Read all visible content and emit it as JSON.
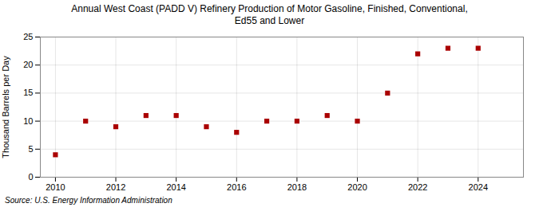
{
  "chart_data": {
    "type": "scatter",
    "title": "Annual West Coast (PADD V) Refinery Production of Motor Gasoline, Finished, Conventional,\nEd55 and Lower",
    "ylabel": "Thousand Barrels per Day",
    "source": "Source: U.S. Energy Information Administration",
    "x": [
      2010,
      2011,
      2012,
      2013,
      2014,
      2015,
      2016,
      2017,
      2018,
      2019,
      2020,
      2021,
      2022,
      2023,
      2024
    ],
    "values": [
      4,
      10,
      9,
      11,
      11,
      9,
      8,
      10,
      10,
      11,
      10,
      15,
      22,
      23,
      23
    ],
    "color": "#aa0000",
    "marker": "square",
    "xlim": [
      2009.5,
      2025.5
    ],
    "xticks": [
      2010,
      2012,
      2014,
      2016,
      2018,
      2020,
      2022,
      2024
    ],
    "ylim": [
      0,
      25
    ],
    "yticks": [
      0,
      5,
      10,
      15,
      20,
      25
    ],
    "grid": true
  }
}
